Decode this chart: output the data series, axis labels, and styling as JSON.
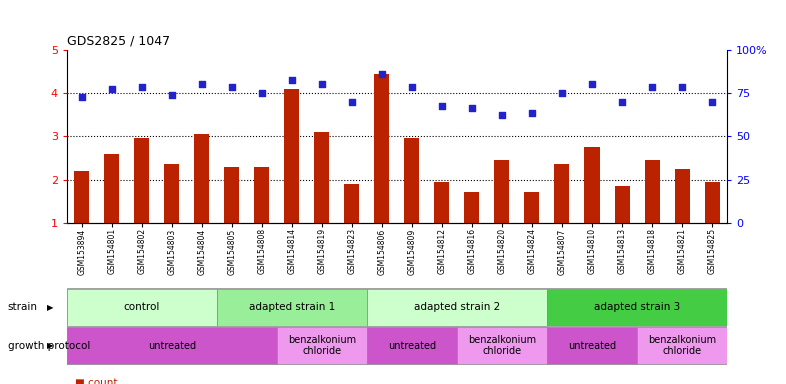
{
  "title": "GDS2825 / 1047",
  "samples": [
    "GSM153894",
    "GSM154801",
    "GSM154802",
    "GSM154803",
    "GSM154804",
    "GSM154805",
    "GSM154808",
    "GSM154814",
    "GSM154819",
    "GSM154823",
    "GSM154806",
    "GSM154809",
    "GSM154812",
    "GSM154816",
    "GSM154820",
    "GSM154824",
    "GSM154807",
    "GSM154810",
    "GSM154813",
    "GSM154818",
    "GSM154821",
    "GSM154825"
  ],
  "counts": [
    2.2,
    2.6,
    2.95,
    2.35,
    3.05,
    2.3,
    2.3,
    4.1,
    3.1,
    1.9,
    4.45,
    2.95,
    1.95,
    1.72,
    2.45,
    1.72,
    2.35,
    2.75,
    1.85,
    2.45,
    2.25,
    1.95
  ],
  "percentile": [
    3.9,
    4.1,
    4.15,
    3.95,
    4.2,
    4.15,
    4.0,
    4.3,
    4.2,
    3.8,
    4.45,
    4.15,
    3.7,
    3.65,
    3.5,
    3.55,
    4.0,
    4.2,
    3.8,
    4.15,
    4.15,
    3.8
  ],
  "ylim_left": [
    1,
    5
  ],
  "ylim_right": [
    0,
    100
  ],
  "yticks_left": [
    1,
    2,
    3,
    4,
    5
  ],
  "ytick_labels_left": [
    "1",
    "2",
    "3",
    "4",
    "5"
  ],
  "yticks_right": [
    0,
    25,
    50,
    75,
    100
  ],
  "ytick_labels_right": [
    "0",
    "25",
    "50",
    "75",
    "100%"
  ],
  "bar_color": "#bb2200",
  "dot_color": "#2222cc",
  "hline_color": "black",
  "hlines": [
    2,
    3,
    4
  ],
  "strain_groups": [
    {
      "label": "control",
      "start": 0,
      "end": 5,
      "color": "#ccffcc"
    },
    {
      "label": "adapted strain 1",
      "start": 5,
      "end": 10,
      "color": "#99ee99"
    },
    {
      "label": "adapted strain 2",
      "start": 10,
      "end": 16,
      "color": "#ccffcc"
    },
    {
      "label": "adapted strain 3",
      "start": 16,
      "end": 22,
      "color": "#44cc44"
    }
  ],
  "protocol_groups": [
    {
      "label": "untreated",
      "start": 0,
      "end": 7,
      "color": "#cc55cc"
    },
    {
      "label": "benzalkonium\nchloride",
      "start": 7,
      "end": 10,
      "color": "#ee99ee"
    },
    {
      "label": "untreated",
      "start": 10,
      "end": 13,
      "color": "#cc55cc"
    },
    {
      "label": "benzalkonium\nchloride",
      "start": 13,
      "end": 16,
      "color": "#ee99ee"
    },
    {
      "label": "untreated",
      "start": 16,
      "end": 19,
      "color": "#cc55cc"
    },
    {
      "label": "benzalkonium\nchloride",
      "start": 19,
      "end": 22,
      "color": "#ee99ee"
    }
  ]
}
